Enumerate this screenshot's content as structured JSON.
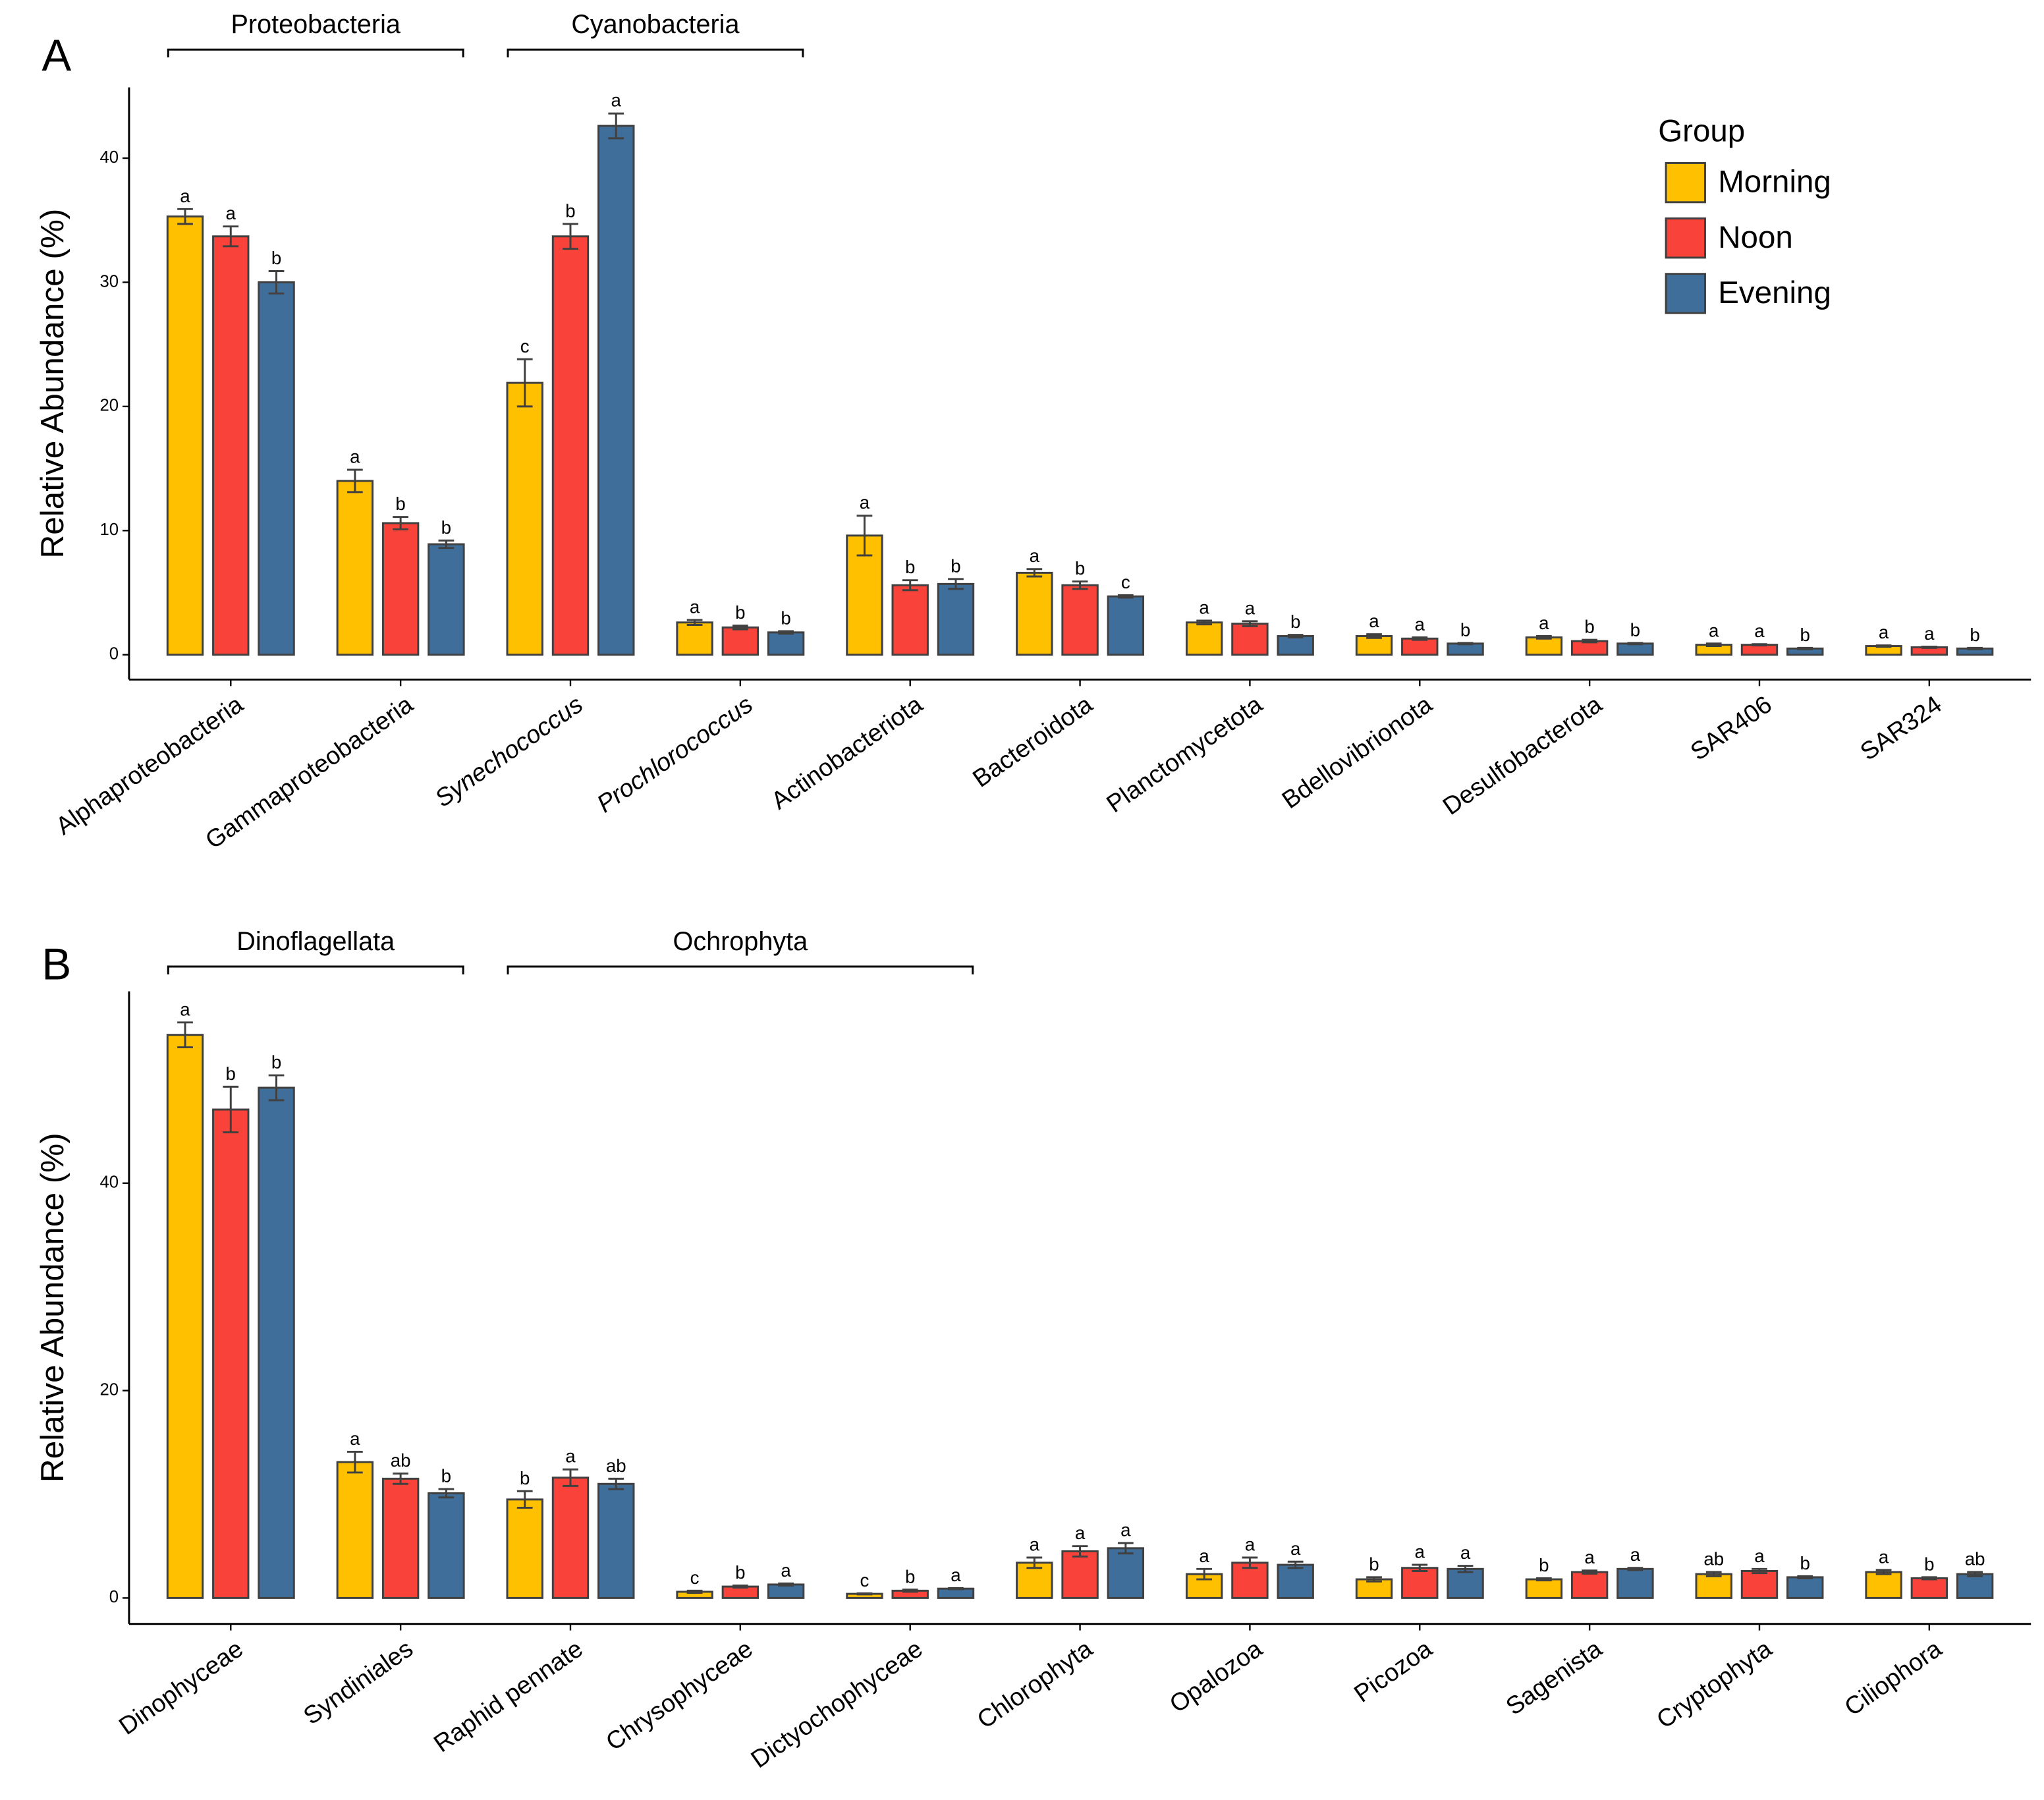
{
  "chart_data": [
    {
      "type": "bar",
      "panel": "A",
      "ylabel": "Relative Abundance (%)",
      "legend_title": "Group",
      "legend": true,
      "categories": [
        "Alphaproteobacteria",
        "Gammaproteobacteria",
        "Synechococcus",
        "Prochlorococcus",
        "Actinobacteriota",
        "Bacteroidota",
        "Planctomycetota",
        "Bdellovibrionota",
        "Desulfobacterota",
        "SAR406",
        "SAR324"
      ],
      "italic_categories": [
        2,
        3
      ],
      "groups": [
        {
          "label": "Proteobacteria",
          "from": "Alphaproteobacteria",
          "to": "Gammaproteobacteria"
        },
        {
          "label": "Cyanobacteria",
          "from": "Synechococcus",
          "to": "Prochlorococcus"
        }
      ],
      "series": [
        {
          "name": "Morning",
          "color": "#FFC000",
          "values": [
            35.3,
            14.0,
            21.9,
            2.6,
            9.6,
            6.6,
            2.6,
            1.5,
            1.4,
            0.8,
            0.7
          ],
          "errors": [
            0.6,
            0.9,
            1.9,
            0.2,
            1.6,
            0.3,
            0.15,
            0.15,
            0.1,
            0.1,
            0.05
          ],
          "letters": [
            "a",
            "a",
            "c",
            "a",
            "a",
            "a",
            "a",
            "a",
            "a",
            "a",
            "a"
          ]
        },
        {
          "name": "Noon",
          "color": "#F8423A",
          "values": [
            33.7,
            10.6,
            33.7,
            2.2,
            5.6,
            5.6,
            2.5,
            1.3,
            1.1,
            0.8,
            0.6
          ],
          "errors": [
            0.8,
            0.5,
            1.0,
            0.15,
            0.4,
            0.3,
            0.2,
            0.1,
            0.1,
            0.05,
            0.05
          ],
          "letters": [
            "a",
            "b",
            "b",
            "b",
            "b",
            "b",
            "a",
            "a",
            "b",
            "a",
            "a"
          ]
        },
        {
          "name": "Evening",
          "color": "#3F6E9A",
          "values": [
            30.0,
            8.9,
            42.6,
            1.8,
            5.7,
            4.7,
            1.5,
            0.9,
            0.9,
            0.5,
            0.5
          ],
          "errors": [
            0.9,
            0.3,
            1.0,
            0.1,
            0.4,
            0.1,
            0.1,
            0.05,
            0.05,
            0.05,
            0.05
          ],
          "letters": [
            "b",
            "b",
            "a",
            "b",
            "b",
            "c",
            "b",
            "b",
            "b",
            "b",
            "b"
          ]
        }
      ],
      "ylim": [
        -2,
        45.7
      ],
      "yticks": [
        0,
        10,
        20,
        30,
        40
      ]
    },
    {
      "type": "bar",
      "panel": "B",
      "ylabel": "Relative Abundance (%)",
      "legend": false,
      "categories": [
        "Dinophyceae",
        "Syndiniales",
        "Raphid pennate",
        "Chrysophyceae",
        "Dictyochophyceae",
        "Chlorophyta",
        "Opalozoa",
        "Picozoa",
        "Sagenista",
        "Cryptophyta",
        "Ciliophora"
      ],
      "italic_categories": [],
      "groups": [
        {
          "label": "Dinoflagellata",
          "from": "Dinophyceae",
          "to": "Syndiniales"
        },
        {
          "label": "Ochrophyta",
          "from": "Raphid pennate",
          "to": "Dictyochophyceae"
        }
      ],
      "series": [
        {
          "color": "#FFC000",
          "values": [
            54.3,
            13.1,
            9.5,
            0.6,
            0.4,
            3.4,
            2.3,
            1.8,
            1.8,
            2.3,
            2.5
          ],
          "errors": [
            1.2,
            1.0,
            0.8,
            0.1,
            0.05,
            0.5,
            0.5,
            0.2,
            0.1,
            0.2,
            0.2
          ],
          "letters": [
            "a",
            "a",
            "b",
            "c",
            "c",
            "a",
            "a",
            "b",
            "b",
            "ab",
            "a"
          ]
        },
        {
          "color": "#F8423A",
          "values": [
            47.1,
            11.5,
            11.6,
            1.1,
            0.7,
            4.5,
            3.4,
            2.9,
            2.5,
            2.6,
            1.9
          ],
          "errors": [
            2.2,
            0.5,
            0.8,
            0.1,
            0.1,
            0.5,
            0.5,
            0.3,
            0.15,
            0.2,
            0.1
          ],
          "letters": [
            "b",
            "ab",
            "a",
            "b",
            "b",
            "a",
            "a",
            "a",
            "a",
            "a",
            "b"
          ]
        },
        {
          "color": "#3F6E9A",
          "values": [
            49.2,
            10.1,
            11.0,
            1.3,
            0.9,
            4.8,
            3.2,
            2.8,
            2.8,
            2.0,
            2.3
          ],
          "errors": [
            1.2,
            0.4,
            0.5,
            0.1,
            0.05,
            0.5,
            0.3,
            0.3,
            0.1,
            0.1,
            0.2
          ],
          "letters": [
            "b",
            "b",
            "ab",
            "a",
            "a",
            "a",
            "a",
            "a",
            "a",
            "b",
            "ab"
          ]
        }
      ],
      "ylim": [
        -2.5,
        58.5
      ],
      "yticks": [
        0,
        20,
        40
      ]
    }
  ]
}
